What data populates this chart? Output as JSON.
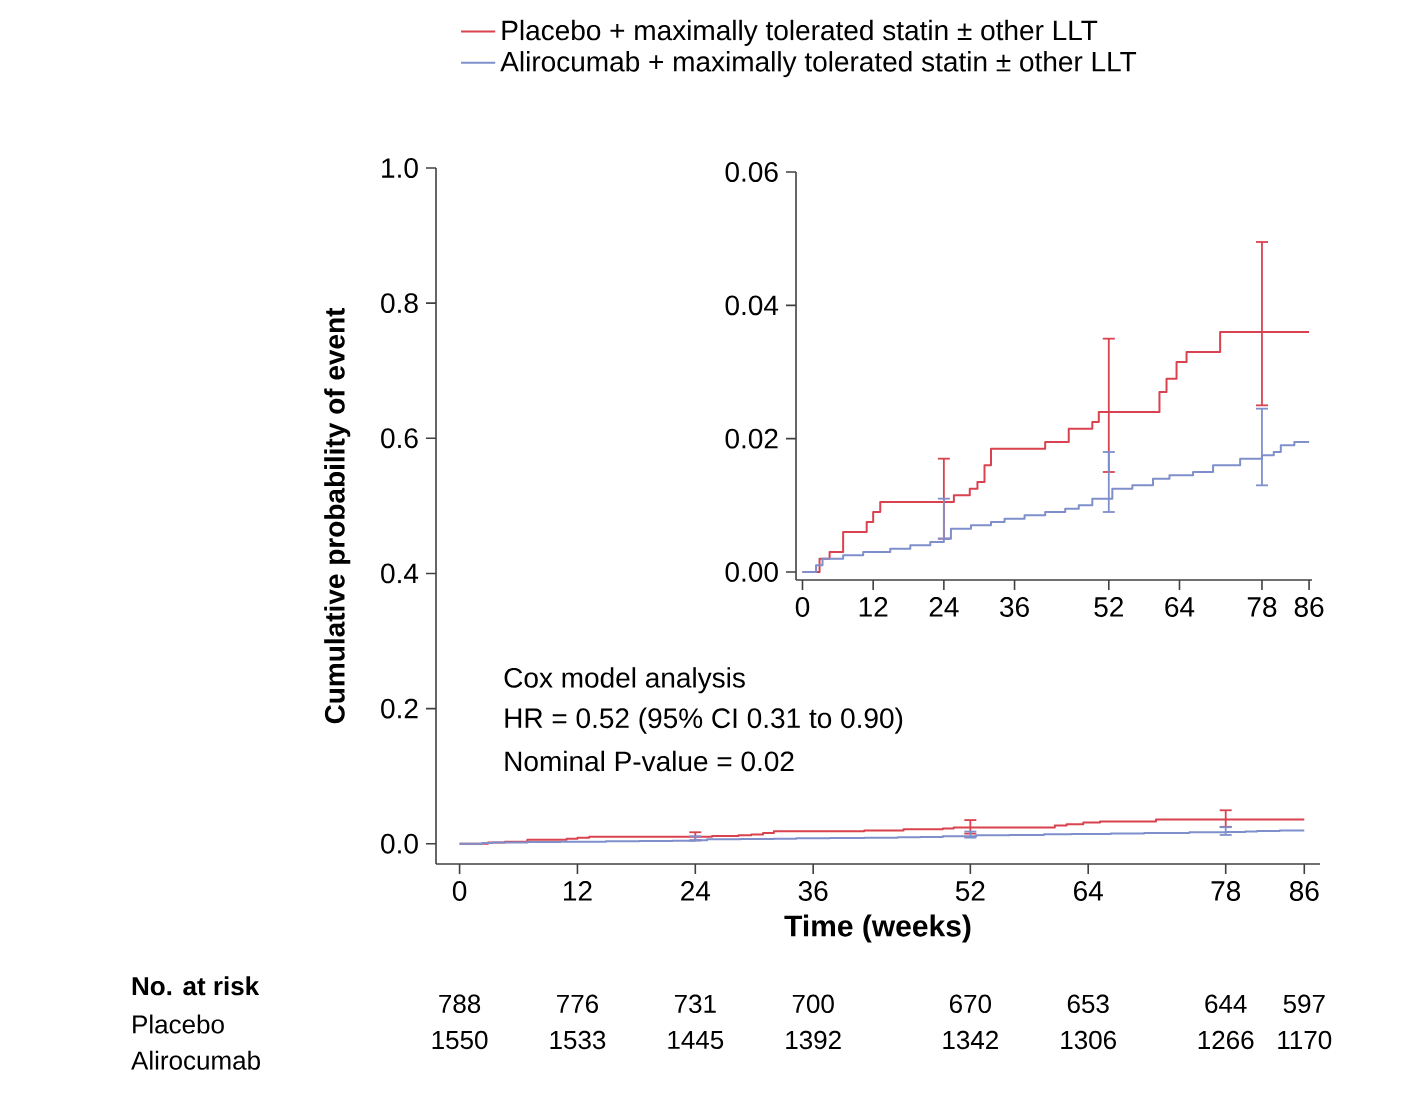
{
  "chart_data": [
    {
      "type": "step",
      "xlabel": "Time (weeks)",
      "ylabel": "Cumulative probability of event",
      "xlim": [
        -2.4,
        87.6
      ],
      "ylim": [
        -0.03,
        1.0
      ],
      "xticks": [
        0,
        12,
        24,
        36,
        52,
        64,
        78,
        86
      ],
      "yticks": [
        {
          "value": 0,
          "label": "0.0"
        },
        {
          "value": 0.2,
          "label": "0.2"
        },
        {
          "value": 0.4,
          "label": "0.4"
        },
        {
          "value": 0.6,
          "label": "0.6"
        },
        {
          "value": 0.8,
          "label": "0.8"
        },
        {
          "value": 1.0,
          "label": "1.0"
        }
      ],
      "legend": "top",
      "marker": "none",
      "annotations": [
        "Cox model analysis",
        "HR = 0.52 (95% CI 0.31 to 0.90)",
        "Nominal P-value = 0.02",
        "No. at risk",
        "Placebo",
        "788",
        "776",
        "731",
        "700",
        "670",
        "653",
        "644",
        "597",
        "Alirocumab",
        "1550",
        "1533",
        "1445",
        "1392",
        "1342",
        "1306",
        "1266",
        "1170"
      ],
      "series": [
        {
          "name": "Placebo + maximally tolerated statin ± other LLT",
          "color": "#d9434f",
          "x": [
            0,
            2.9,
            4.6,
            6.9,
            10.9,
            12,
            13.2,
            24,
            25.7,
            28.4,
            29.7,
            30.9,
            32,
            41.2,
            45.2,
            49.2,
            50.3,
            52,
            60.6,
            61.8,
            63.5,
            65.2,
            70.9,
            78,
            86
          ],
          "values": [
            0,
            0.002,
            0.003,
            0.006,
            0.0075,
            0.009,
            0.0105,
            0.0105,
            0.0115,
            0.0125,
            0.0135,
            0.016,
            0.0185,
            0.0195,
            0.0215,
            0.0225,
            0.024,
            0.024,
            0.027,
            0.029,
            0.0315,
            0.033,
            0.036,
            0.036,
            0.036
          ],
          "errors": [
            null,
            null,
            null,
            null,
            null,
            null,
            null,
            [
              0.005,
              0.017
            ],
            null,
            null,
            null,
            null,
            null,
            null,
            null,
            null,
            null,
            [
              0.015,
              0.035
            ],
            null,
            null,
            null,
            null,
            null,
            [
              0.025,
              0.0495
            ],
            null
          ]
        },
        {
          "name": "Alirocumab + maximally tolerated statin ± other LLT",
          "color": "#7f8fcc",
          "x": [
            0,
            2.3,
            3.4,
            6.9,
            10.3,
            14.9,
            18.3,
            21.7,
            24,
            25.2,
            28.6,
            32,
            34.3,
            37.7,
            41.2,
            44.6,
            46.9,
            49.2,
            52,
            52.6,
            56,
            59.5,
            62.3,
            66.3,
            69.7,
            74.3,
            78,
            80,
            81.2,
            83.5,
            86
          ],
          "values": [
            0,
            0.001,
            0.002,
            0.0025,
            0.003,
            0.0035,
            0.004,
            0.0045,
            0.005,
            0.0065,
            0.007,
            0.0075,
            0.008,
            0.0085,
            0.009,
            0.0095,
            0.01,
            0.011,
            0.011,
            0.0125,
            0.013,
            0.014,
            0.0145,
            0.015,
            0.016,
            0.017,
            0.0175,
            0.018,
            0.019,
            0.0195,
            0.0195
          ],
          "errors": [
            null,
            null,
            null,
            null,
            null,
            null,
            null,
            null,
            [
              0.005,
              0.011
            ],
            null,
            null,
            null,
            null,
            null,
            null,
            null,
            null,
            null,
            [
              0.009,
              0.018
            ],
            null,
            null,
            null,
            null,
            null,
            null,
            null,
            [
              0.013,
              0.0245
            ],
            null,
            null,
            null,
            null
          ]
        }
      ]
    },
    {
      "type": "step",
      "xlim": [
        -1.1,
        86.5
      ],
      "ylim": [
        -0.0012,
        0.06
      ],
      "xticks": [
        0,
        12,
        24,
        36,
        52,
        64,
        78,
        86
      ],
      "yticks": [
        {
          "value": 0,
          "label": "0.00"
        },
        {
          "value": 0.02,
          "label": "0.02"
        },
        {
          "value": 0.04,
          "label": "0.04"
        },
        {
          "value": 0.06,
          "label": "0.06"
        }
      ],
      "marker": "none",
      "series": [
        {
          "color": "#d9434f",
          "x": [
            0,
            2.9,
            4.6,
            6.9,
            10.9,
            12,
            13.2,
            24,
            25.7,
            28.4,
            29.7,
            30.9,
            32,
            41.2,
            45.2,
            49.2,
            50.3,
            52,
            60.6,
            61.8,
            63.5,
            65.2,
            70.9,
            78,
            86
          ],
          "values": [
            0,
            0.002,
            0.003,
            0.006,
            0.0075,
            0.009,
            0.0105,
            0.0105,
            0.0115,
            0.0125,
            0.0135,
            0.016,
            0.0185,
            0.0195,
            0.0215,
            0.0225,
            0.024,
            0.024,
            0.027,
            0.029,
            0.0315,
            0.033,
            0.036,
            0.036,
            0.036
          ],
          "errors": [
            null,
            null,
            null,
            null,
            null,
            null,
            null,
            [
              0.005,
              0.017
            ],
            null,
            null,
            null,
            null,
            null,
            null,
            null,
            null,
            null,
            [
              0.015,
              0.035
            ],
            null,
            null,
            null,
            null,
            null,
            [
              0.025,
              0.0495
            ],
            null
          ]
        },
        {
          "color": "#7f8fcc",
          "x": [
            0,
            2.3,
            3.4,
            6.9,
            10.3,
            14.9,
            18.3,
            21.7,
            24,
            25.2,
            28.6,
            32,
            34.3,
            37.7,
            41.2,
            44.6,
            46.9,
            49.2,
            52,
            52.6,
            56,
            59.5,
            62.3,
            66.3,
            69.7,
            74.3,
            78,
            80,
            81.2,
            83.5,
            86
          ],
          "values": [
            0,
            0.001,
            0.002,
            0.0025,
            0.003,
            0.0035,
            0.004,
            0.0045,
            0.005,
            0.0065,
            0.007,
            0.0075,
            0.008,
            0.0085,
            0.009,
            0.0095,
            0.01,
            0.011,
            0.011,
            0.0125,
            0.013,
            0.014,
            0.0145,
            0.015,
            0.016,
            0.017,
            0.0175,
            0.018,
            0.019,
            0.0195,
            0.0195
          ],
          "errors": [
            null,
            null,
            null,
            null,
            null,
            null,
            null,
            null,
            [
              0.005,
              0.011
            ],
            null,
            null,
            null,
            null,
            null,
            null,
            null,
            null,
            null,
            [
              0.009,
              0.018
            ],
            null,
            null,
            null,
            null,
            null,
            null,
            null,
            [
              0.013,
              0.0245
            ],
            null,
            null,
            null,
            null
          ]
        }
      ]
    }
  ]
}
